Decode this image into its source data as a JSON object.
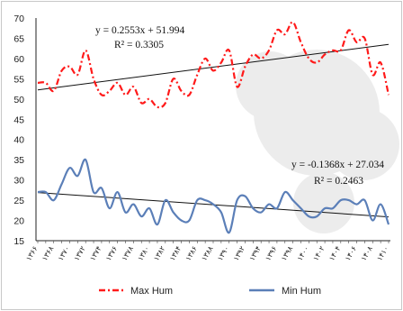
{
  "chart_data": {
    "type": "line",
    "x": [
      "۱۳۶۶",
      "",
      "۱۳۶۸",
      "",
      "۱۳۷۰",
      "",
      "۱۳۷۲",
      "",
      "۱۳۷۴",
      "",
      "۱۳۷۶",
      "",
      "۱۳۷۸",
      "",
      "۱۳۸۰",
      "",
      "۱۳۸۲",
      "",
      "۱۳۸۴",
      "",
      "۱۳۸۶",
      "",
      "۱۳۸۸",
      "",
      "۱۳۹۰",
      "",
      "۱۳۹۲",
      "",
      "۱۳۹۴",
      "",
      "۱۳۹۶",
      "",
      "۱۳۹۸",
      "",
      "۱۴۰۰",
      "",
      "۱۴۰۲",
      "",
      "۱۴۰۴",
      "",
      "۱۴۰۶",
      "",
      "۱۴۰۸",
      "",
      "۱۴۱۰"
    ],
    "ylim": [
      15,
      70
    ],
    "yticks": [
      15,
      20,
      25,
      30,
      35,
      40,
      45,
      50,
      55,
      60,
      65,
      70
    ],
    "grid": false,
    "legend_position": "bottom",
    "series": [
      {
        "name": "Max Hum",
        "color": "#ff1a1a",
        "style": "dash-dot",
        "values": [
          54,
          54,
          52,
          57,
          58,
          56,
          62,
          55,
          51,
          52,
          54,
          51,
          53,
          49,
          50,
          48,
          49,
          55,
          52,
          51,
          56,
          60,
          57,
          59,
          62,
          53,
          58,
          61,
          60,
          62,
          67,
          66,
          69,
          64,
          60,
          59,
          61,
          62,
          62,
          67,
          64,
          65,
          56,
          59,
          51
        ]
      },
      {
        "name": "Min Hum",
        "color": "#5b7fb8",
        "style": "solid",
        "values": [
          27,
          27,
          25,
          29,
          33,
          31,
          35,
          27,
          28,
          23,
          27,
          22,
          24,
          21,
          23,
          19,
          25,
          22,
          20,
          20,
          25,
          25,
          24,
          22,
          17,
          25,
          26,
          23,
          22,
          24,
          23,
          27,
          25,
          23,
          21,
          21,
          23,
          23,
          25,
          25,
          24,
          25,
          20,
          24,
          19
        ]
      }
    ],
    "trendlines": [
      {
        "series": "Max Hum",
        "slope": 0.2553,
        "intercept": 51.994,
        "equation": "y = 0.2553x + 51.994",
        "r2": "R² = 0.3305"
      },
      {
        "series": "Min Hum",
        "slope": -0.1368,
        "intercept": 27.034,
        "equation": "y = -0.1368x + 27.034",
        "r2": "R² = 0.2463"
      }
    ]
  }
}
